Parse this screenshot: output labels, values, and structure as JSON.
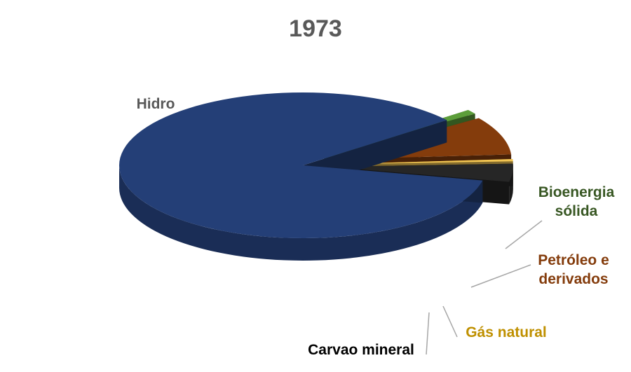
{
  "chart_data": {
    "type": "pie",
    "title": "1973",
    "three_d": true,
    "exploded_slices": [
      "Bioenergia sólida",
      "Petróleo e derivados",
      "Gás natural",
      "Carvao mineral"
    ],
    "slices": [
      {
        "name": "Hidro",
        "label_lines": [
          "Hidro"
        ],
        "value": 86.0,
        "color": "#243F77",
        "label_color": "#595959"
      },
      {
        "name": "Bioenergia sólida",
        "label_lines": [
          "Bioenergia",
          "sólida"
        ],
        "value": 1.0,
        "color": "#5C9E3A",
        "label_color": "#385723"
      },
      {
        "name": "Petróleo e derivados",
        "label_lines": [
          "Petróleo e",
          "derivados"
        ],
        "value": 8.5,
        "color": "#843C0C",
        "label_color": "#843C0C"
      },
      {
        "name": "Gás natural",
        "label_lines": [
          "Gás natural"
        ],
        "value": 0.5,
        "color": "#F2C552",
        "label_color": "#BF9000"
      },
      {
        "name": "Carvao mineral",
        "label_lines": [
          "Carvao mineral"
        ],
        "value": 4.0,
        "color": "#262626",
        "label_color": "#000000"
      }
    ]
  }
}
